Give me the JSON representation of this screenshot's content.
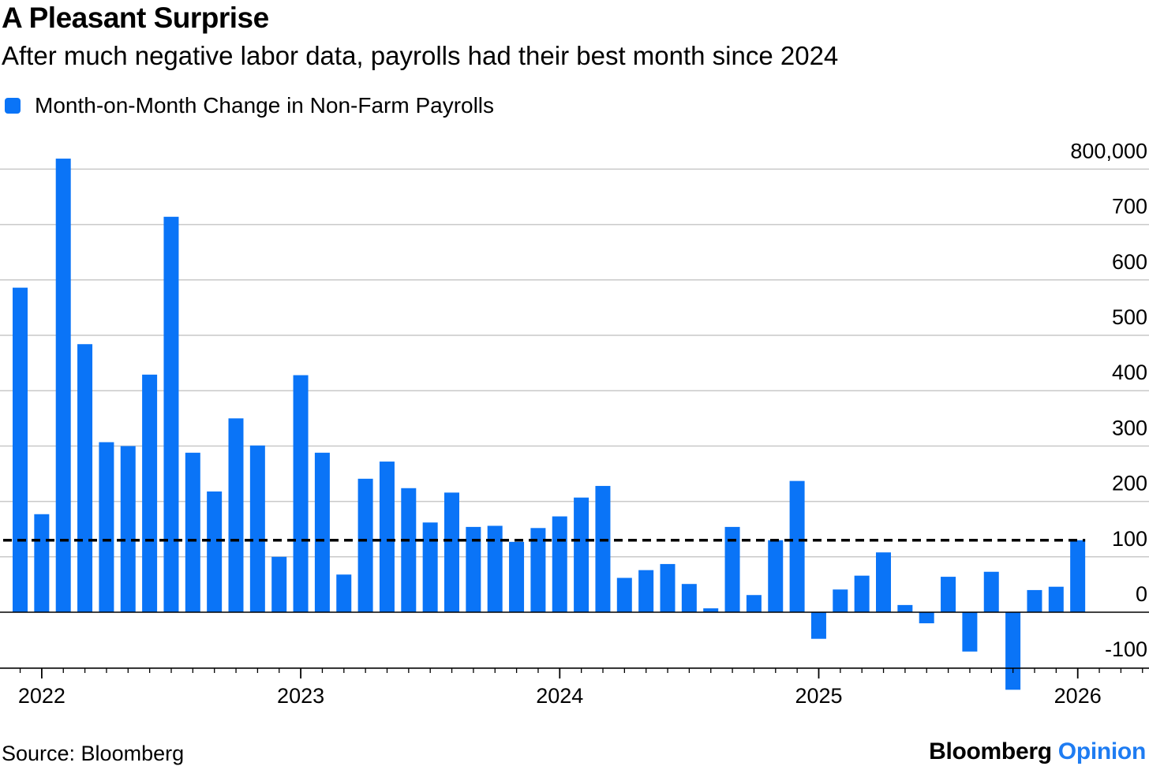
{
  "header": {
    "title": "A Pleasant Surprise",
    "subtitle": "After much negative labor data, payrolls had their best month since 2024"
  },
  "footer": {
    "source": "Source: Bloomberg",
    "brand_main": "Bloomberg",
    "brand_accent": "Opinion"
  },
  "colors": {
    "bar": "#0a74f7",
    "grid": "#c9c9c9",
    "reference_line": "#000000",
    "brand_accent": "#1e7cf2"
  },
  "chart_data": {
    "type": "bar",
    "title": "A Pleasant Surprise",
    "subtitle": "After much negative labor data, payrolls had their best month since 2024",
    "series": [
      {
        "name": "Month-on-Month Change in Non-Farm Payrolls",
        "values": [
          586000,
          177000,
          819000,
          484000,
          307000,
          300000,
          429000,
          714000,
          288000,
          218000,
          350000,
          301000,
          100000,
          428000,
          288000,
          68000,
          241000,
          272000,
          224000,
          162000,
          216000,
          154000,
          156000,
          127000,
          152000,
          173000,
          207000,
          228000,
          62000,
          76000,
          87000,
          51000,
          7000,
          154000,
          31000,
          130000,
          237000,
          -48000,
          41000,
          66000,
          108000,
          13000,
          -20000,
          64000,
          -71000,
          73000,
          -140000,
          40000,
          46000,
          130000
        ]
      }
    ],
    "x_start": "2021-12",
    "x_ticks": [
      "2022",
      "2023",
      "2024",
      "2025",
      "2026"
    ],
    "y_ticks": [
      "800,000",
      "700",
      "600",
      "500",
      "400",
      "300",
      "200",
      "100",
      "0",
      "-100"
    ],
    "y_tick_values": [
      800000,
      700000,
      600000,
      500000,
      400000,
      300000,
      200000,
      100000,
      0,
      -100000
    ],
    "ylim": [
      -100000,
      800000
    ],
    "reference_line": 130000,
    "grid": true,
    "legend_position": "top-left"
  }
}
